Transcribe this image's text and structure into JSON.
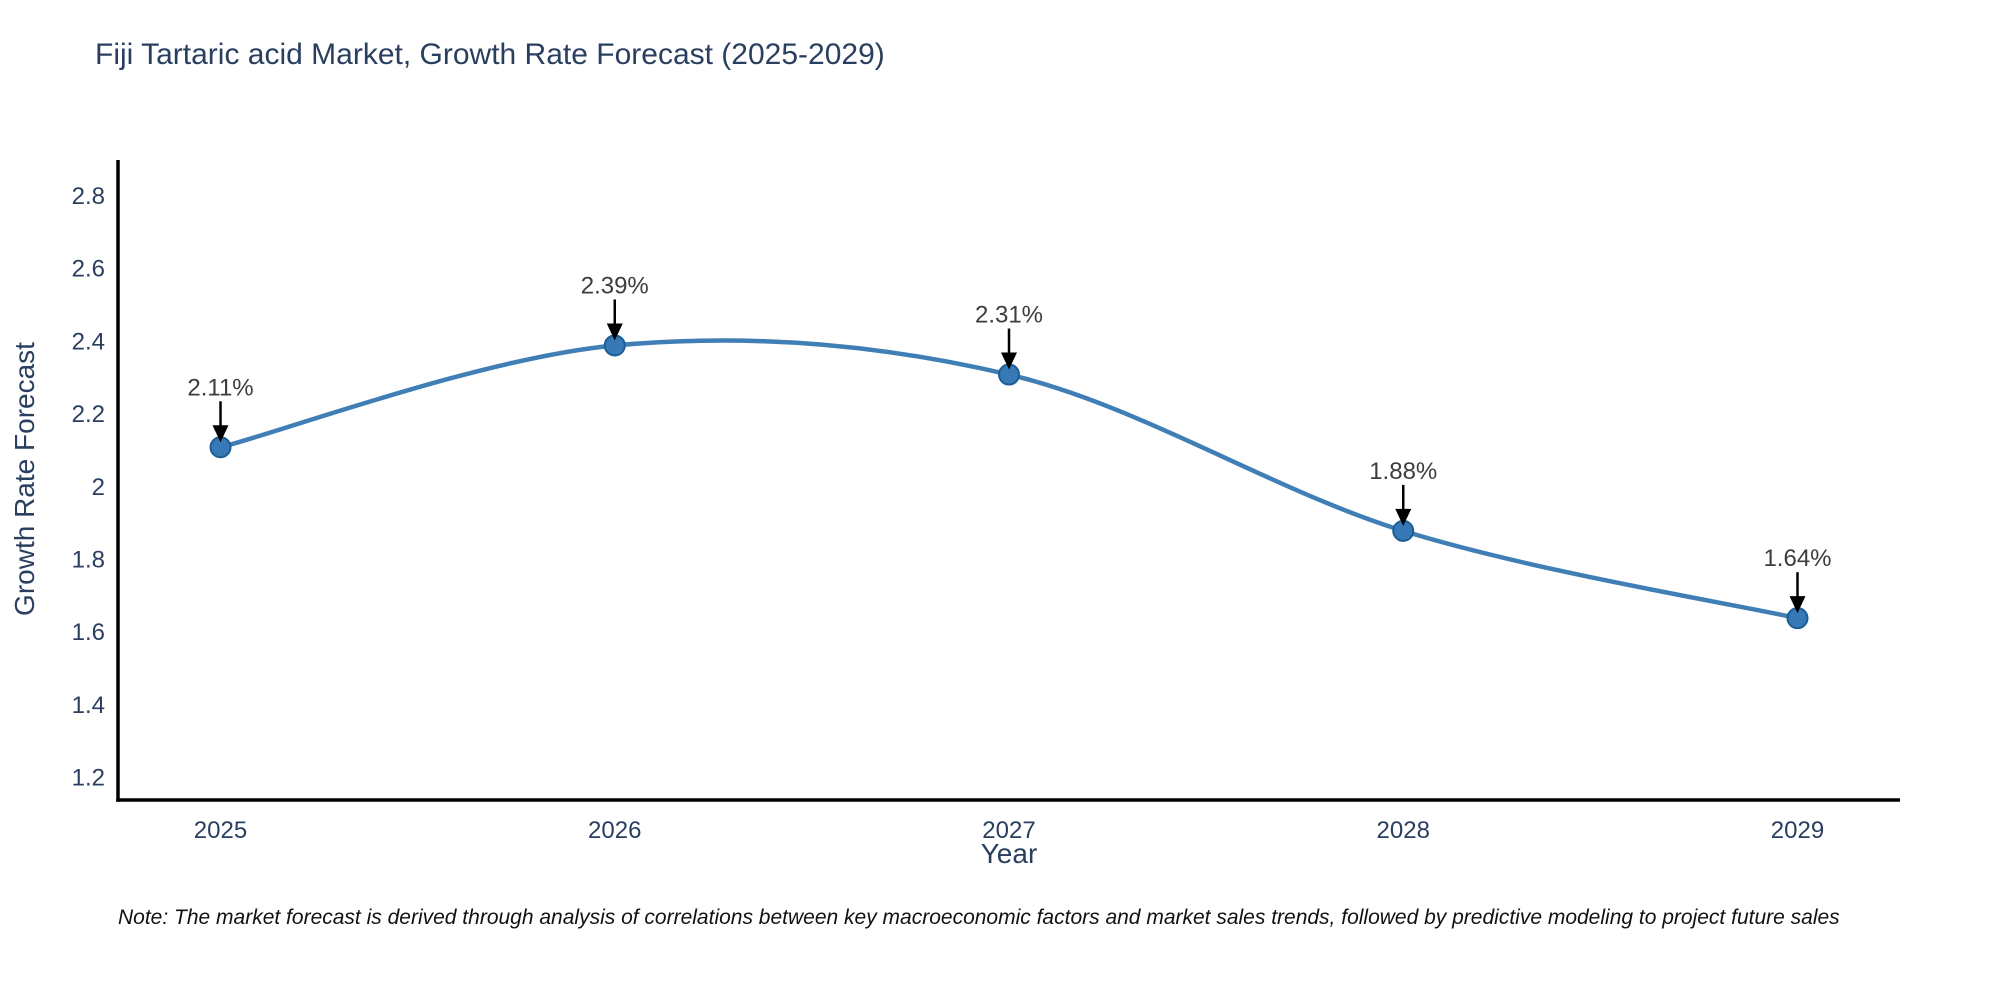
{
  "title": "Fiji Tartaric acid Market, Growth Rate Forecast (2025-2029)",
  "note": "Note: The market forecast is derived through analysis of correlations between key macroeconomic factors and market sales trends, followed by predictive modeling to project future sales",
  "colors": {
    "background": "#ffffff",
    "title_text": "#2a3f5f",
    "axis_text": "#2a3f5f",
    "axis_line": "#000000",
    "line": "#3f7fb5",
    "marker_fill": "#3679b6",
    "marker_edge": "#1d5d95",
    "annotation_text": "#3d3d3d",
    "arrow": "#000000",
    "note_text": "#111111"
  },
  "chart_data": {
    "type": "line",
    "title": "Fiji Tartaric acid Market, Growth Rate Forecast (2025-2029)",
    "xlabel": "Year",
    "ylabel": "Growth Rate Forecast",
    "x": [
      2025,
      2026,
      2027,
      2028,
      2029
    ],
    "series": [
      {
        "name": "Growth Rate Forecast",
        "values": [
          2.11,
          2.39,
          2.31,
          1.88,
          1.64
        ]
      }
    ],
    "point_labels": [
      "2.11%",
      "2.39%",
      "2.31%",
      "1.88%",
      "1.64%"
    ],
    "xticks": [
      2025,
      2026,
      2027,
      2028,
      2029
    ],
    "yticks": [
      1.2,
      1.4,
      1.6,
      1.8,
      2.0,
      2.2,
      2.4,
      2.6,
      2.8
    ],
    "xlim": [
      2024.74,
      2029.26
    ],
    "ylim": [
      1.14,
      2.9
    ],
    "grid": false,
    "legend": "none",
    "line_shape": "spline"
  }
}
